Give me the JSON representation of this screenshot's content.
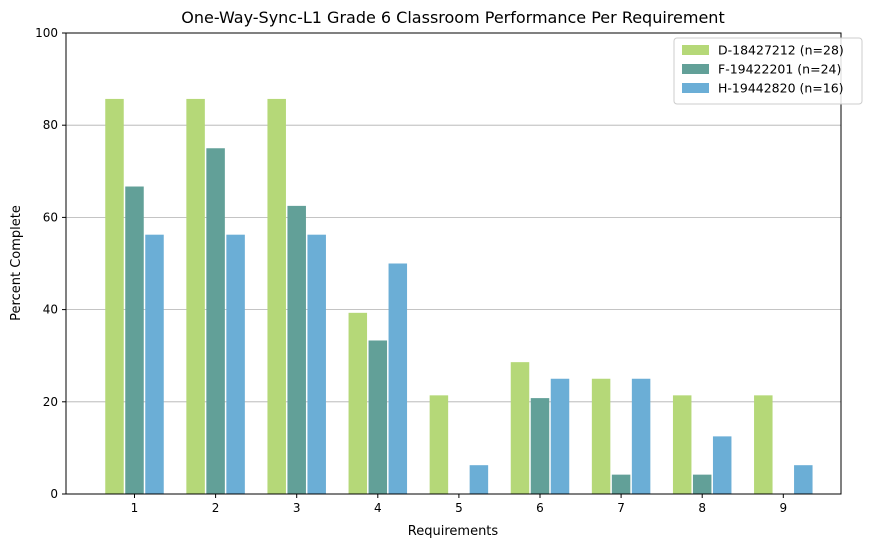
{
  "chart_data": {
    "type": "bar",
    "title": "One-Way-Sync-L1 Grade 6 Classroom Performance Per Requirement",
    "xlabel": "Requirements",
    "ylabel": "Percent Complete",
    "categories": [
      "1",
      "2",
      "3",
      "4",
      "5",
      "6",
      "7",
      "8",
      "9"
    ],
    "ylim": [
      0,
      100
    ],
    "yticks": [
      0,
      20,
      40,
      60,
      80,
      100
    ],
    "grid": "horizontal",
    "legend_position": "top-right",
    "series": [
      {
        "name": "D-18427212 (n=28)",
        "color": "#b5d878",
        "values": [
          85.7,
          85.7,
          85.7,
          39.3,
          21.4,
          28.6,
          25.0,
          21.4,
          21.4
        ]
      },
      {
        "name": "F-19422201 (n=24)",
        "color": "#62a098",
        "values": [
          66.7,
          75.0,
          62.5,
          33.3,
          0,
          20.8,
          4.2,
          4.2,
          0
        ]
      },
      {
        "name": "H-19442820 (n=16)",
        "color": "#6baed6",
        "values": [
          56.25,
          56.25,
          56.25,
          50.0,
          6.25,
          25.0,
          25.0,
          12.5,
          6.25
        ]
      }
    ]
  }
}
